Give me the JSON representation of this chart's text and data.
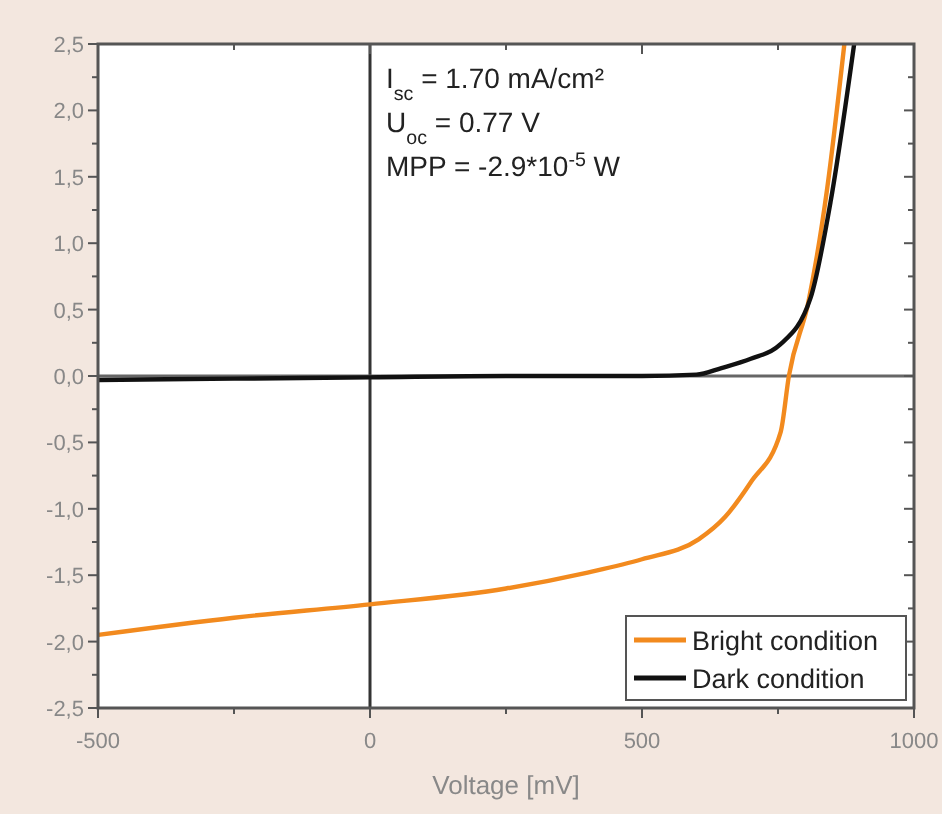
{
  "chart_data": {
    "type": "line",
    "xlabel": "Voltage [mV]",
    "xlim": [
      -500,
      1000
    ],
    "xticks": [
      -500,
      {
        "value": -250,
        "label": null
      },
      0,
      {
        "value": 250,
        "label": null
      },
      500,
      {
        "value": 750,
        "label": null
      },
      1000
    ],
    "ylim": [
      -2.5,
      2.5
    ],
    "yticks": [
      {
        "value": -2.5,
        "label": "-2,5"
      },
      {
        "value": -2.25,
        "label": null
      },
      {
        "value": -2,
        "label": "-2,0"
      },
      {
        "value": -1.75,
        "label": null
      },
      {
        "value": -1.5,
        "label": "-1,5"
      },
      {
        "value": -1.25,
        "label": null
      },
      {
        "value": -1,
        "label": "-1,0"
      },
      {
        "value": -0.75,
        "label": null
      },
      {
        "value": -0.5,
        "label": "-0,5"
      },
      {
        "value": -0.25,
        "label": null
      },
      {
        "value": 0,
        "label": "0,0"
      },
      {
        "value": 0.25,
        "label": null
      },
      {
        "value": 0.5,
        "label": "0,5"
      },
      {
        "value": 0.75,
        "label": null
      },
      {
        "value": 1,
        "label": "1,0"
      },
      {
        "value": 1.25,
        "label": null
      },
      {
        "value": 1.5,
        "label": "1,5"
      },
      {
        "value": 1.75,
        "label": null
      },
      {
        "value": 2,
        "label": "2,0"
      },
      {
        "value": 2.25,
        "label": null
      },
      {
        "value": 2.5,
        "label": "2,5"
      }
    ],
    "grid": false,
    "legend": "bottom right",
    "marker": "none",
    "line_style": "solid",
    "ref_lines": [
      {
        "axis": "x",
        "value": 0,
        "color": "#333333"
      },
      {
        "axis": "y",
        "value": 0,
        "color": "#666666"
      }
    ],
    "annotations": [
      "I$_{sc}$ = 1.70 mA/cm²",
      "U$_{oc}$ = 0.77 V",
      "MPP = -2.9*10$^{-5}$ W"
    ],
    "series": [
      {
        "name": "Bright condition",
        "color": "#f28a1e",
        "x": [
          -500,
          -250,
          0,
          250,
          400,
          500,
          604,
          653,
          700,
          755,
          770,
          806,
          840,
          872
        ],
        "values": [
          -1.95,
          -1.82,
          -1.72,
          -1.6,
          -1.48,
          -1.38,
          -1.23,
          -1.06,
          -0.8,
          -0.42,
          0,
          0.56,
          1.4,
          2.5
        ]
      },
      {
        "name": "Dark condition",
        "color": "#111111",
        "x": [
          -500,
          -250,
          0,
          250,
          500,
          600,
          646,
          700,
          752,
          810,
          847,
          890
        ],
        "values": [
          -0.03,
          -0.02,
          -0.01,
          0,
          0,
          0.01,
          0.06,
          0.13,
          0.23,
          0.59,
          1.32,
          2.5
        ]
      }
    ]
  }
}
